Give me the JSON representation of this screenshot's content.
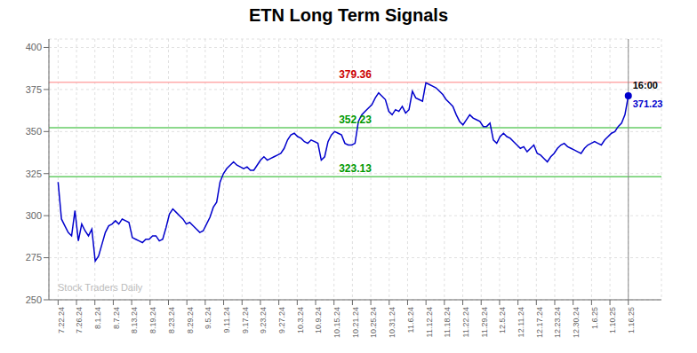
{
  "chart_data": {
    "type": "line",
    "title": "ETN Long Term Signals",
    "color": "#0000cc",
    "grid": true,
    "xlim": [
      -0.5,
      32.8
    ],
    "xticks": [
      {
        "value": 0,
        "label": "7.22.24"
      },
      {
        "value": 1,
        "label": "7.26.24"
      },
      {
        "value": 2,
        "label": "8.1.24"
      },
      {
        "value": 3,
        "label": "8.7.24"
      },
      {
        "value": 4,
        "label": "8.13.24"
      },
      {
        "value": 5,
        "label": "8.19.24"
      },
      {
        "value": 6,
        "label": "8.23.24"
      },
      {
        "value": 7,
        "label": "8.29.24"
      },
      {
        "value": 8,
        "label": "9.5.24"
      },
      {
        "value": 9,
        "label": "9.11.24"
      },
      {
        "value": 10,
        "label": "9.17.24"
      },
      {
        "value": 11,
        "label": "9.23.24"
      },
      {
        "value": 12,
        "label": "9.27.24"
      },
      {
        "value": 13,
        "label": "10.3.24"
      },
      {
        "value": 14,
        "label": "10.9.24"
      },
      {
        "value": 15,
        "label": "10.15.24"
      },
      {
        "value": 16,
        "label": "10.21.24"
      },
      {
        "value": 17,
        "label": "10.25.24"
      },
      {
        "value": 18,
        "label": "10.31.24"
      },
      {
        "value": 19,
        "label": "11.6.24"
      },
      {
        "value": 20,
        "label": "11.12.24"
      },
      {
        "value": 21,
        "label": "11.18.24"
      },
      {
        "value": 22,
        "label": "11.22.24"
      },
      {
        "value": 23,
        "label": "11.29.24"
      },
      {
        "value": 24,
        "label": "12.5.24"
      },
      {
        "value": 25,
        "label": "12.11.24"
      },
      {
        "value": 26,
        "label": "12.17.24"
      },
      {
        "value": 27,
        "label": "12.23.24"
      },
      {
        "value": 28,
        "label": "12.30.24"
      },
      {
        "value": 29,
        "label": "1.6.25"
      },
      {
        "value": 30,
        "label": "1.10.25"
      },
      {
        "value": 31,
        "label": "1.16.25"
      }
    ],
    "ylim": [
      250,
      405
    ],
    "yticks": [
      250,
      275,
      300,
      325,
      350,
      375,
      400
    ],
    "x": [
      0,
      0.1834,
      0.3669,
      0.5503,
      0.7337,
      0.9172,
      1.1006,
      1.284,
      1.4675,
      1.6509,
      1.8343,
      2.0178,
      2.2012,
      2.3846,
      2.568,
      2.7515,
      2.9349,
      3.1183,
      3.3018,
      3.4852,
      3.6686,
      3.8521,
      4.0355,
      4.2189,
      4.4024,
      4.5858,
      4.7692,
      4.9527,
      5.1361,
      5.3195,
      5.503,
      5.6864,
      5.8698,
      6.0533,
      6.2367,
      6.4201,
      6.6036,
      6.787,
      6.9704,
      7.1538,
      7.3373,
      7.5207,
      7.7041,
      7.8876,
      8.071,
      8.2544,
      8.4379,
      8.6213,
      8.8047,
      8.9882,
      9.1716,
      9.355,
      9.5385,
      9.7219,
      9.9053,
      10.0888,
      10.2722,
      10.4556,
      10.6391,
      10.8225,
      11.0059,
      11.1893,
      11.3728,
      11.5562,
      11.7396,
      11.9231,
      12.1065,
      12.2899,
      12.4734,
      12.6568,
      12.8402,
      13.0237,
      13.2071,
      13.3905,
      13.574,
      13.7574,
      13.9408,
      14.1243,
      14.3077,
      14.4911,
      14.6746,
      14.858,
      15.0414,
      15.2249,
      15.4083,
      15.5917,
      15.7751,
      15.9586,
      16.142,
      16.3254,
      16.5089,
      16.6923,
      16.8757,
      17.0592,
      17.2426,
      17.426,
      17.6095,
      17.7929,
      17.9763,
      18.1598,
      18.3432,
      18.5266,
      18.7101,
      18.8935,
      19.0769,
      19.2604,
      19.4438,
      19.6272,
      19.8107,
      19.9941,
      20.1775,
      20.3609,
      20.5444,
      20.7278,
      20.9112,
      21.0947,
      21.2781,
      21.4615,
      21.645,
      21.8284,
      22.0118,
      22.1953,
      22.3787,
      22.5621,
      22.7456,
      22.929,
      23.1124,
      23.2959,
      23.4793,
      23.6627,
      23.8462,
      24.0296,
      24.213,
      24.3964,
      24.5799,
      24.7633,
      24.9467,
      25.1302,
      25.3136,
      25.497,
      25.6805,
      25.8639,
      26.0473,
      26.2308,
      26.4142,
      26.5976,
      26.7811,
      26.9645,
      27.1479,
      27.3314,
      27.5148,
      27.6982,
      27.8817,
      28.0651,
      28.2485,
      28.432,
      28.6154,
      28.7988,
      28.9822,
      29.1657,
      29.3491,
      29.5325,
      29.716,
      29.8994,
      30.0828,
      30.2663,
      30.4497,
      30.6331,
      30.8166,
      31
    ],
    "values": [
      320,
      298,
      294,
      290,
      288,
      303,
      285,
      295,
      291,
      288,
      292,
      273,
      276,
      283,
      290,
      294,
      295,
      297,
      295,
      298,
      297,
      296,
      287,
      286,
      285,
      284,
      286,
      286,
      288,
      288,
      285,
      286,
      293,
      301,
      304,
      302,
      300,
      298,
      295,
      296,
      294,
      292,
      290,
      291,
      295,
      299,
      305,
      308,
      320,
      325,
      328,
      330,
      332,
      330,
      329,
      328,
      329,
      327,
      327,
      330,
      333,
      335,
      333,
      334,
      335,
      336,
      337,
      340,
      345,
      348,
      349,
      347,
      346,
      344,
      343,
      345,
      344,
      343,
      333,
      335,
      344,
      348,
      350,
      349,
      348,
      343,
      342,
      342,
      343,
      356,
      360,
      362,
      364,
      366,
      370,
      373,
      371,
      369,
      362,
      360,
      363,
      362,
      365,
      361,
      363,
      374,
      370,
      369,
      368,
      379,
      378,
      377,
      376,
      374,
      372,
      369,
      367,
      365,
      360,
      356,
      354,
      357,
      360,
      358,
      357,
      356,
      353,
      353,
      355,
      345,
      343,
      347,
      349,
      347,
      346,
      344,
      342,
      340,
      341,
      338,
      340,
      342,
      337,
      336,
      334,
      332,
      335,
      337,
      340,
      342,
      343,
      341,
      340,
      339,
      338,
      337,
      340,
      342,
      343,
      344,
      343,
      342,
      345,
      347,
      349,
      350,
      353,
      355,
      360,
      371.23
    ],
    "reference_lines": [
      {
        "y": 379.36,
        "color": "#ffaaaa",
        "label": "379.36",
        "label_color": "#cc0000"
      },
      {
        "y": 352.23,
        "color": "#66cc66",
        "label": "352.23",
        "label_color": "#009900"
      },
      {
        "y": 323.13,
        "color": "#66cc66",
        "label": "323.13",
        "label_color": "#009900"
      },
      {
        "x": 31,
        "color": "#888888"
      }
    ],
    "annotations": [
      {
        "text": "16:00",
        "x": 31,
        "y": 371.23
      },
      {
        "text": "371.23",
        "x": 31,
        "y": 371.23,
        "color": "#0000cc",
        "marker": "circle"
      },
      {
        "text": "Stock Traders Daily",
        "color": "#bbbbbb"
      }
    ]
  }
}
